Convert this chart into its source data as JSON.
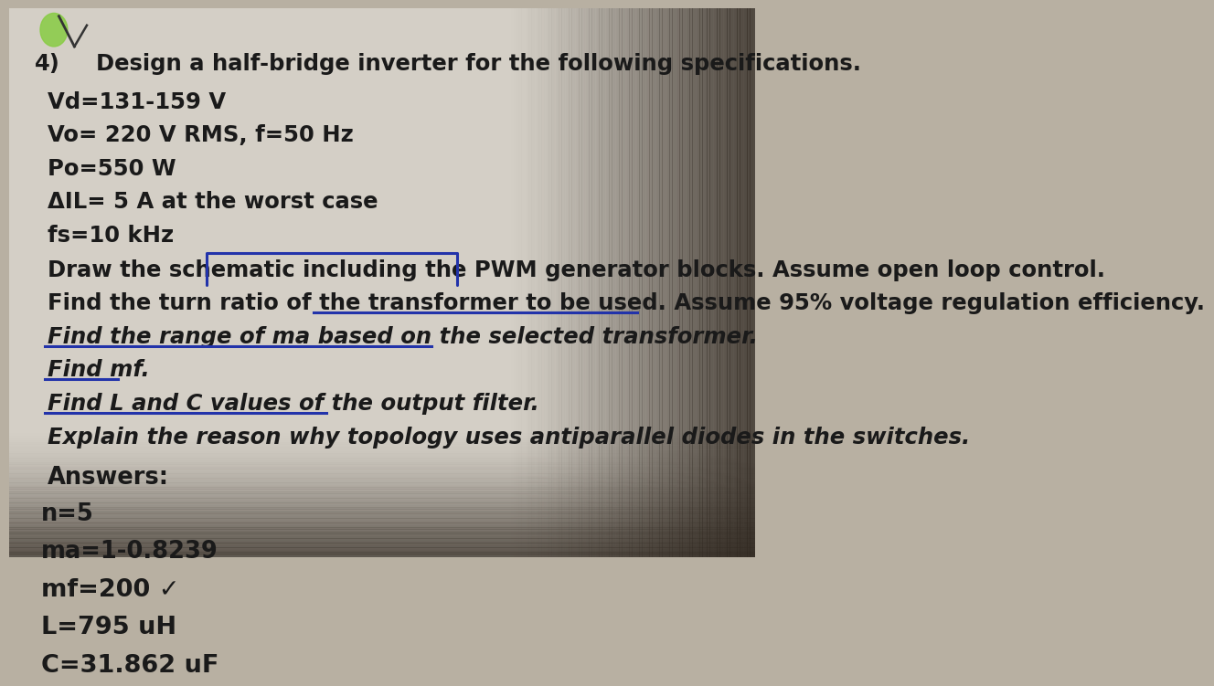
{
  "bg_color": "#b8b0a2",
  "paper_color": "#d4cfc6",
  "text_color": "#1a1a1a",
  "title_prefix": "4)",
  "title_text": "  Design a half-bridge inverter for the following specifications.",
  "spec_lines": [
    "Vd=131-159 V",
    "Vo= 220 V RMS, f=50 Hz",
    "Po=550 W",
    "ΔIL= 5 A at the worst case",
    "fs=10 kHz"
  ],
  "task_lines": [
    "Draw the schematic including the PWM generator blocks. Assume open loop control.",
    "Find the turn ratio of the transformer to be used. Assume 95% voltage regulation efficiency.",
    "Find the range of ma based on the selected transformer.",
    "Find mf.",
    "Find L and C values of the output filter.",
    "Explain the reason why topology uses antiparallel diodes in the switches."
  ],
  "answers_header": "Answers:",
  "answer_lines": [
    "n=5",
    "ma=1-0.8239",
    "mf=200 ✓",
    "L=795 uH",
    "C=31.862 uF"
  ],
  "blue_color": "#2233aa",
  "green_color": "#88cc44",
  "shadow_color": "#999088"
}
